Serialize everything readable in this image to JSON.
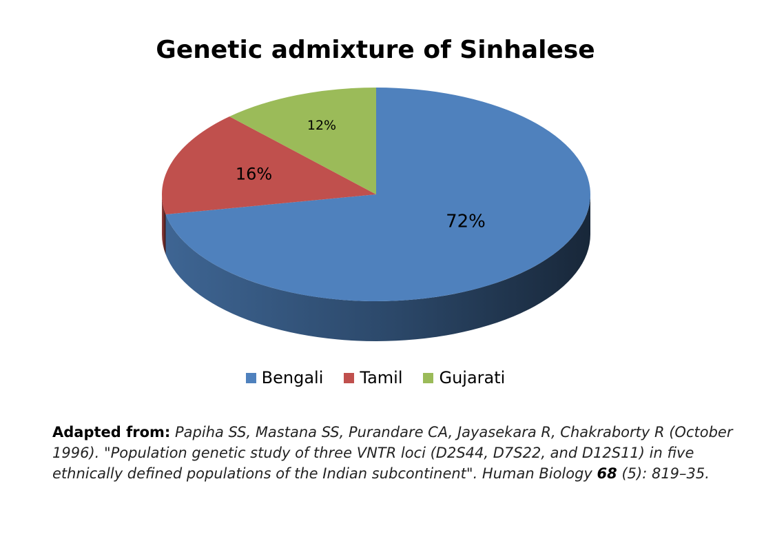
{
  "chart_data": {
    "type": "pie",
    "title": "Genetic admixture of Sinhalese",
    "categories": [
      "Bengali",
      "Tamil",
      "Gujarati"
    ],
    "values": [
      72,
      16,
      12
    ],
    "labels": [
      "72%",
      "16%",
      "12%"
    ],
    "colors": [
      "#4f81bd",
      "#c0504d",
      "#9bbb59"
    ],
    "style": "3d",
    "legend_position": "bottom"
  },
  "citation": {
    "lead": "Adapted from:",
    "part1": "Papiha SS, Mastana SS, Purandare CA, Jayasekara R, Chakraborty R (October 1996). \"Population genetic study of three VNTR loci (D2S44, D7S22, and D12S11) in five ethnically defined populations of the Indian subcontinent\". Human Biology ",
    "volume": "68",
    "part2": " (5): 819–35."
  }
}
